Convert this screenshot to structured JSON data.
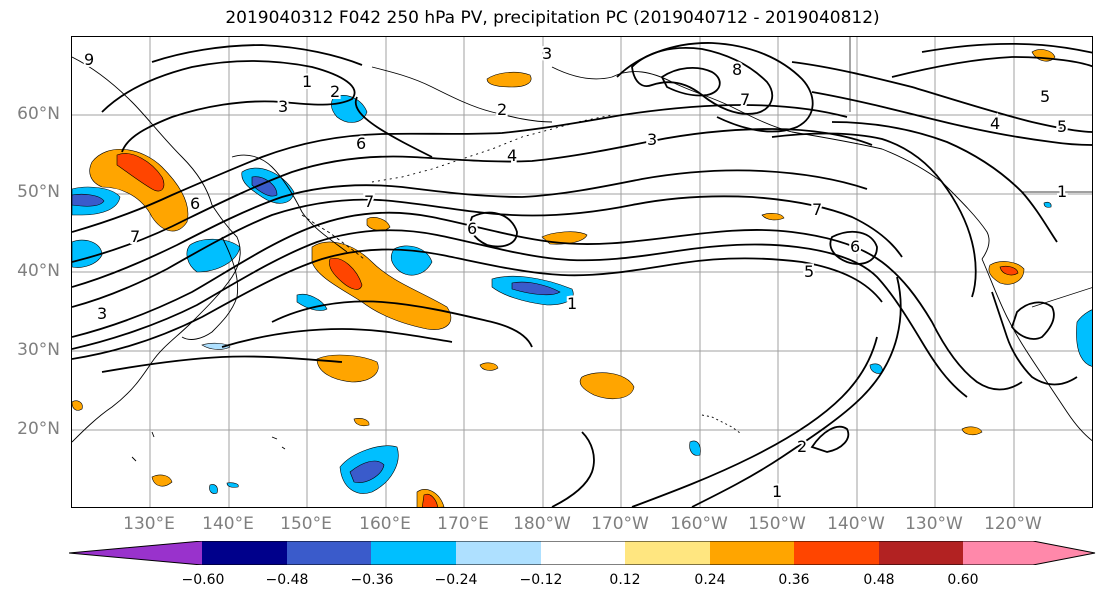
{
  "title": "2019040312 F042 250 hPa PV, precipitation PC (2019040712 - 2019040812)",
  "lat_labels": [
    "60°N",
    "50°N",
    "40°N",
    "30°N",
    "20°N"
  ],
  "lon_labels": [
    "130°E",
    "140°E",
    "150°E",
    "160°E",
    "170°E",
    "180°W",
    "170°W",
    "160°W",
    "150°W",
    "140°W",
    "130°W",
    "120°W"
  ],
  "colorbar": {
    "colors": [
      "#9932cc",
      "#00008b",
      "#3a5bcb",
      "#00bfff",
      "#aee0ff",
      "#ffffff",
      "#ffe680",
      "#ffa500",
      "#ff4500",
      "#b22222",
      "#ff88aa"
    ],
    "ticks": [
      "−0.60",
      "−0.48",
      "−0.36",
      "−0.24",
      "−0.12",
      "0.12",
      "0.24",
      "0.36",
      "0.48",
      "0.60"
    ]
  },
  "contour_labels": [
    "1",
    "2",
    "3",
    "4",
    "5",
    "6",
    "7",
    "8",
    "9"
  ]
}
